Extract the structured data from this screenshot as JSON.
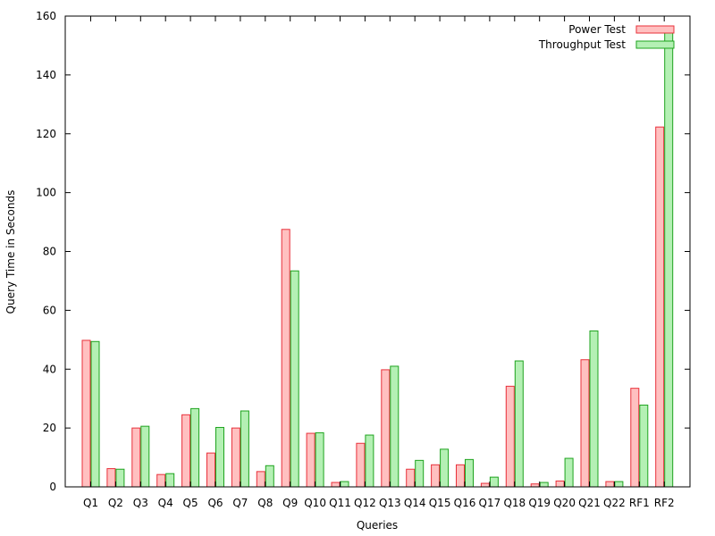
{
  "chart_data": {
    "type": "bar",
    "title": "",
    "xlabel": "Queries",
    "ylabel": "Query Time in Seconds",
    "ylim": [
      0,
      160
    ],
    "yticks": [
      0,
      20,
      40,
      60,
      80,
      100,
      120,
      140,
      160
    ],
    "grid": false,
    "legend_position": "top-right",
    "categories": [
      "Q1",
      "Q2",
      "Q3",
      "Q4",
      "Q5",
      "Q6",
      "Q7",
      "Q8",
      "Q9",
      "Q10",
      "Q11",
      "Q12",
      "Q13",
      "Q14",
      "Q15",
      "Q16",
      "Q17",
      "Q18",
      "Q19",
      "Q20",
      "Q21",
      "Q22",
      "RF1",
      "RF2"
    ],
    "series": [
      {
        "name": "Power Test",
        "color": "#e8303a",
        "fill": "#ffc0c0",
        "values": [
          49.8,
          6.2,
          20.0,
          4.2,
          24.5,
          11.5,
          20.0,
          5.2,
          87.5,
          18.2,
          1.5,
          14.8,
          39.8,
          6.0,
          7.5,
          7.5,
          1.2,
          34.2,
          1.0,
          2.0,
          43.2,
          1.8,
          33.5,
          122.3
        ]
      },
      {
        "name": "Throughput Test",
        "color": "#1ea31e",
        "fill": "#b4f0b4",
        "values": [
          49.4,
          6.0,
          20.6,
          4.5,
          26.6,
          20.2,
          25.8,
          7.2,
          73.4,
          18.4,
          1.8,
          17.6,
          41.0,
          9.0,
          12.8,
          9.3,
          3.3,
          42.8,
          1.5,
          9.7,
          53.0,
          1.8,
          27.8,
          154.8
        ]
      }
    ]
  }
}
